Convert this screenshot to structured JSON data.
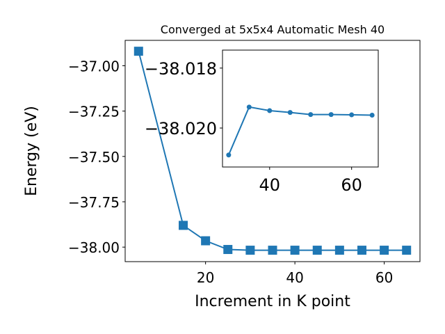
{
  "chart_data": [
    {
      "type": "line",
      "title": "Converged at 5x5x4 Automatic Mesh 40",
      "xlabel": "Increment in K point",
      "ylabel": "Energy (eV)",
      "xlim": [
        2,
        68
      ],
      "ylim": [
        -38.08,
        -36.86
      ],
      "xticks": [
        20,
        40,
        60
      ],
      "xtick_labels": [
        "20",
        "40",
        "60"
      ],
      "yticks": [
        -37.0,
        -37.25,
        -37.5,
        -37.75,
        -38.0
      ],
      "ytick_labels": [
        "−37.00",
        "−37.25",
        "−37.50",
        "−37.75",
        "−38.00"
      ],
      "grid": false,
      "series": [
        {
          "marker": "square",
          "color": "#1f77b4",
          "x": [
            5,
            15,
            20,
            25,
            30,
            35,
            40,
            45,
            50,
            55,
            60,
            65
          ],
          "y": [
            -36.92,
            -37.88,
            -37.965,
            -38.013,
            -38.017,
            -38.017,
            -38.017,
            -38.017,
            -38.017,
            -38.017,
            -38.017,
            -38.017
          ]
        }
      ]
    },
    {
      "type": "line",
      "title": "",
      "xlabel": "",
      "ylabel": "",
      "xlim": [
        28.5,
        66.5
      ],
      "ylim": [
        -38.0213,
        -38.0174
      ],
      "xticks": [
        40,
        60
      ],
      "xtick_labels": [
        "40",
        "60"
      ],
      "yticks": [
        -38.02,
        -38.018
      ],
      "ytick_labels": [
        "−38.020",
        "−38.018"
      ],
      "grid": false,
      "series": [
        {
          "marker": "circle",
          "color": "#1f77b4",
          "x": [
            30,
            35,
            40,
            45,
            50,
            55,
            60,
            65
          ],
          "y": [
            -38.0209,
            -38.0193,
            -38.01942,
            -38.01948,
            -38.01955,
            -38.01955,
            -38.01956,
            -38.01957
          ]
        }
      ]
    }
  ]
}
